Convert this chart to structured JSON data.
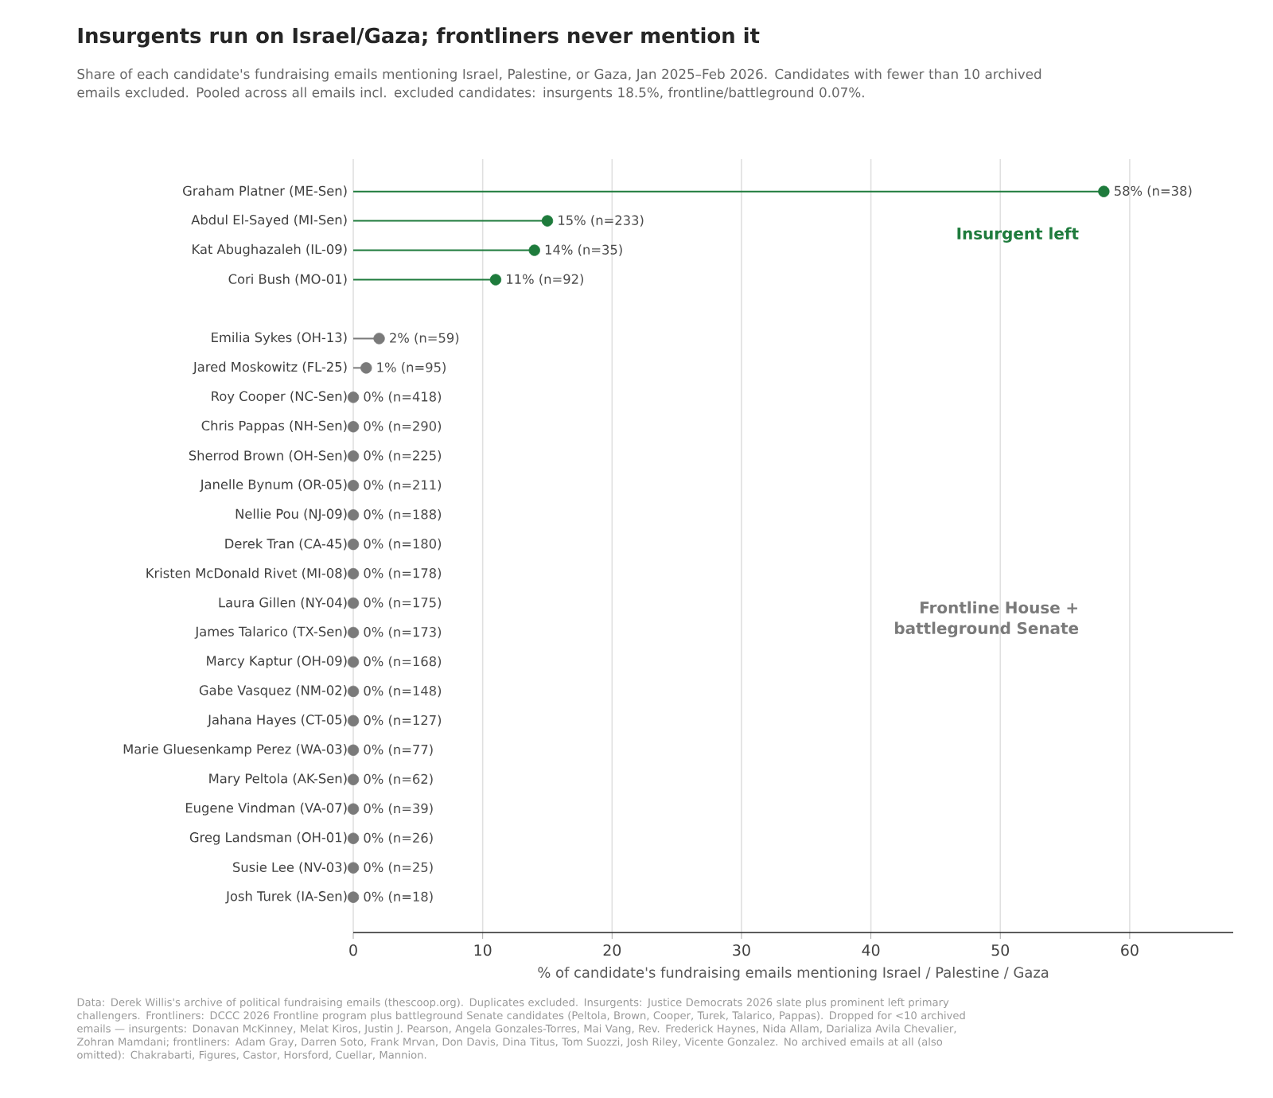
{
  "chart_data": {
    "type": "lollipop",
    "orientation": "horizontal",
    "title": "Insurgents run on Israel/Gaza; frontliners never mention it",
    "subtitle": "Share of each candidate's fundraising emails mentioning Israel, Palestine, or Gaza, Jan 2025–Feb 2026. Candidates with fewer than 10 archived emails excluded. Pooled across all emails incl. excluded candidates: insurgents 18.5%, frontline/battleground 0.07%.",
    "xlabel": "% of candidate's fundraising emails mentioning Israel / Palestine / Gaza",
    "categories": [
      "Graham Platner (ME-Sen)",
      "Abdul El-Sayed (MI-Sen)",
      "Kat Abughazaleh (IL-09)",
      "Cori Bush (MO-01)",
      null,
      "Emilia Sykes (OH-13)",
      "Jared Moskowitz (FL-25)",
      "Roy Cooper (NC-Sen)",
      "Chris Pappas (NH-Sen)",
      "Sherrod Brown (OH-Sen)",
      "Janelle Bynum (OR-05)",
      "Nellie Pou (NJ-09)",
      "Derek Tran (CA-45)",
      "Kristen McDonald Rivet (MI-08)",
      "Laura Gillen (NY-04)",
      "James Talarico (TX-Sen)",
      "Marcy Kaptur (OH-09)",
      "Gabe Vasquez (NM-02)",
      "Jahana Hayes (CT-05)",
      "Marie Gluesenkamp Perez (WA-03)",
      "Mary Peltola (AK-Sen)",
      "Eugene Vindman (VA-07)",
      "Greg Landsman (OH-01)",
      "Susie Lee (NV-03)",
      "Josh Turek (IA-Sen)"
    ],
    "values": [
      58,
      15,
      14,
      11,
      null,
      2,
      1,
      0,
      0,
      0,
      0,
      0,
      0,
      0,
      0,
      0,
      0,
      0,
      0,
      0,
      0,
      0,
      0,
      0,
      0
    ],
    "colors": [
      "#1e7b3c",
      "#1e7b3c",
      "#1e7b3c",
      "#1e7b3c",
      null,
      "#7a7a7a",
      "#7a7a7a",
      "#7a7a7a",
      "#7a7a7a",
      "#7a7a7a",
      "#7a7a7a",
      "#7a7a7a",
      "#7a7a7a",
      "#7a7a7a",
      "#7a7a7a",
      "#7a7a7a",
      "#7a7a7a",
      "#7a7a7a",
      "#7a7a7a",
      "#7a7a7a",
      "#7a7a7a",
      "#7a7a7a",
      "#7a7a7a",
      "#7a7a7a",
      "#7a7a7a"
    ],
    "value_labels": [
      "58%  (n=38)",
      "15%  (n=233)",
      "14%  (n=35)",
      "11%  (n=92)",
      null,
      "2%  (n=59)",
      "1%  (n=95)",
      "0%  (n=418)",
      "0%  (n=290)",
      "0%  (n=225)",
      "0%  (n=211)",
      "0%  (n=188)",
      "0%  (n=180)",
      "0%  (n=178)",
      "0%  (n=175)",
      "0%  (n=173)",
      "0%  (n=168)",
      "0%  (n=148)",
      "0%  (n=127)",
      "0%  (n=77)",
      "0%  (n=62)",
      "0%  (n=39)",
      "0%  (n=26)",
      "0%  (n=25)",
      "0%  (n=18)"
    ],
    "xlim": [
      0,
      68
    ],
    "xticks": [
      0,
      10,
      20,
      30,
      40,
      50,
      60
    ],
    "grid": "x",
    "marker": "circle",
    "annotations": [
      "Insurgent left",
      "Frontline House + battleground Senate",
      "Data: Derek Willis's archive of political fundraising emails (thescoop.org). Duplicates excluded. Insurgents: Justice Democrats 2026 slate plus prominent left primary challengers. Frontliners: DCCC 2026 Frontline program plus battleground Senate candidates (Peltola, Brown, Cooper, Turek, Talarico, Pappas). Dropped for <10 archived emails — insurgents: Donavan McKinney, Melat Kiros, Justin J. Pearson, Angela Gonzales-Torres, Mai Vang, Rev. Frederick Haynes, Nida Allam, Darializa Avila Chevalier, Zohran Mamdani; frontliners: Adam Gray, Darren Soto, Frank Mrvan, Don Davis, Dina Titus, Tom Suozzi, Josh Riley, Vicente Gonzalez. No archived emails at all (also omitted): Chakrabarti, Figures, Castor, Horsford, Cuellar, Mannion."
    ]
  }
}
